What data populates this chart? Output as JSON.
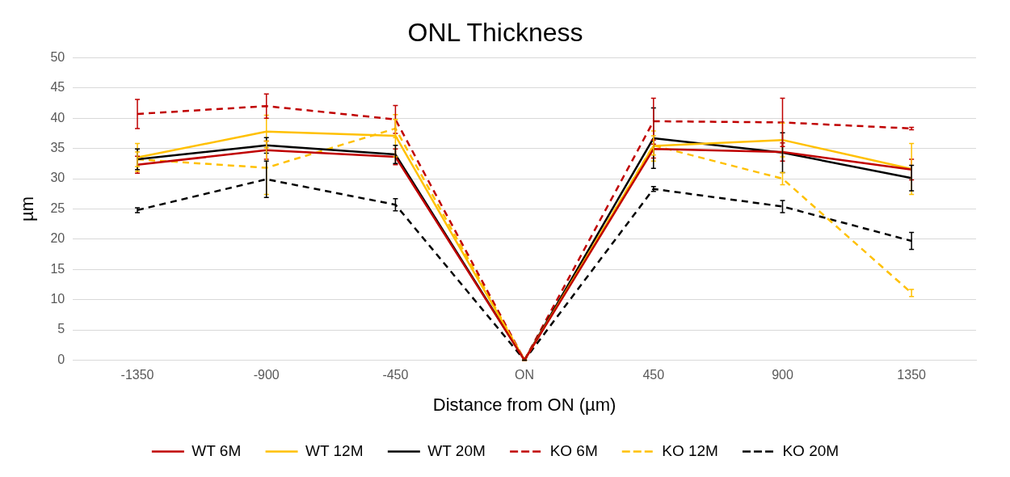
{
  "chart_data": {
    "type": "line",
    "title": "ONL Thickness",
    "xlabel": "Distance from ON (µm)",
    "ylabel": "µm",
    "categories": [
      "-1350",
      "-900",
      "-450",
      "ON",
      "450",
      "900",
      "1350"
    ],
    "ylim": [
      0,
      50
    ],
    "yticks": [
      0,
      5,
      10,
      15,
      20,
      25,
      30,
      35,
      40,
      45,
      50
    ],
    "grid": "y",
    "legend": "bottom",
    "marker": "none",
    "series": [
      {
        "name": "WT 6M",
        "color": "#c00000",
        "line_style": "solid",
        "values": [
          32.3,
          34.7,
          33.6,
          0,
          34.9,
          34.4,
          31.5
        ],
        "errors": [
          1.4,
          1.5,
          1.3,
          0,
          1.5,
          1.5,
          1.7
        ]
      },
      {
        "name": "WT 12M",
        "color": "#ffc000",
        "line_style": "solid",
        "values": [
          33.5,
          37.8,
          37.1,
          0,
          35.4,
          36.4,
          31.6
        ],
        "errors": [
          2.3,
          2.7,
          3.5,
          0,
          2.5,
          2.8,
          4.2
        ]
      },
      {
        "name": "WT 20M",
        "color": "#000000",
        "line_style": "solid",
        "values": [
          33.2,
          35.5,
          34.0,
          0,
          36.7,
          34.3,
          30.1
        ],
        "errors": [
          1.7,
          1.3,
          1.5,
          0,
          5.0,
          3.3,
          2.1
        ]
      },
      {
        "name": "KO 6M",
        "color": "#c00000",
        "line_style": "dashed",
        "values": [
          40.7,
          42.0,
          39.8,
          0,
          39.5,
          39.3,
          38.3
        ],
        "errors": [
          2.4,
          2.0,
          2.3,
          0,
          3.8,
          4.0,
          0.2
        ]
      },
      {
        "name": "KO 12M",
        "color": "#ffc000",
        "line_style": "dashed",
        "values": [
          33.2,
          31.8,
          38.3,
          0,
          35.5,
          30.0,
          11.1
        ],
        "errors": [
          1.2,
          4.4,
          1.5,
          0,
          1.6,
          1.0,
          0.6
        ]
      },
      {
        "name": "KO 20M",
        "color": "#000000",
        "line_style": "dashed",
        "values": [
          24.8,
          29.9,
          25.7,
          0,
          28.3,
          25.4,
          19.7
        ],
        "errors": [
          0.4,
          3.0,
          1.0,
          0,
          0.4,
          1.0,
          1.4
        ]
      }
    ]
  }
}
